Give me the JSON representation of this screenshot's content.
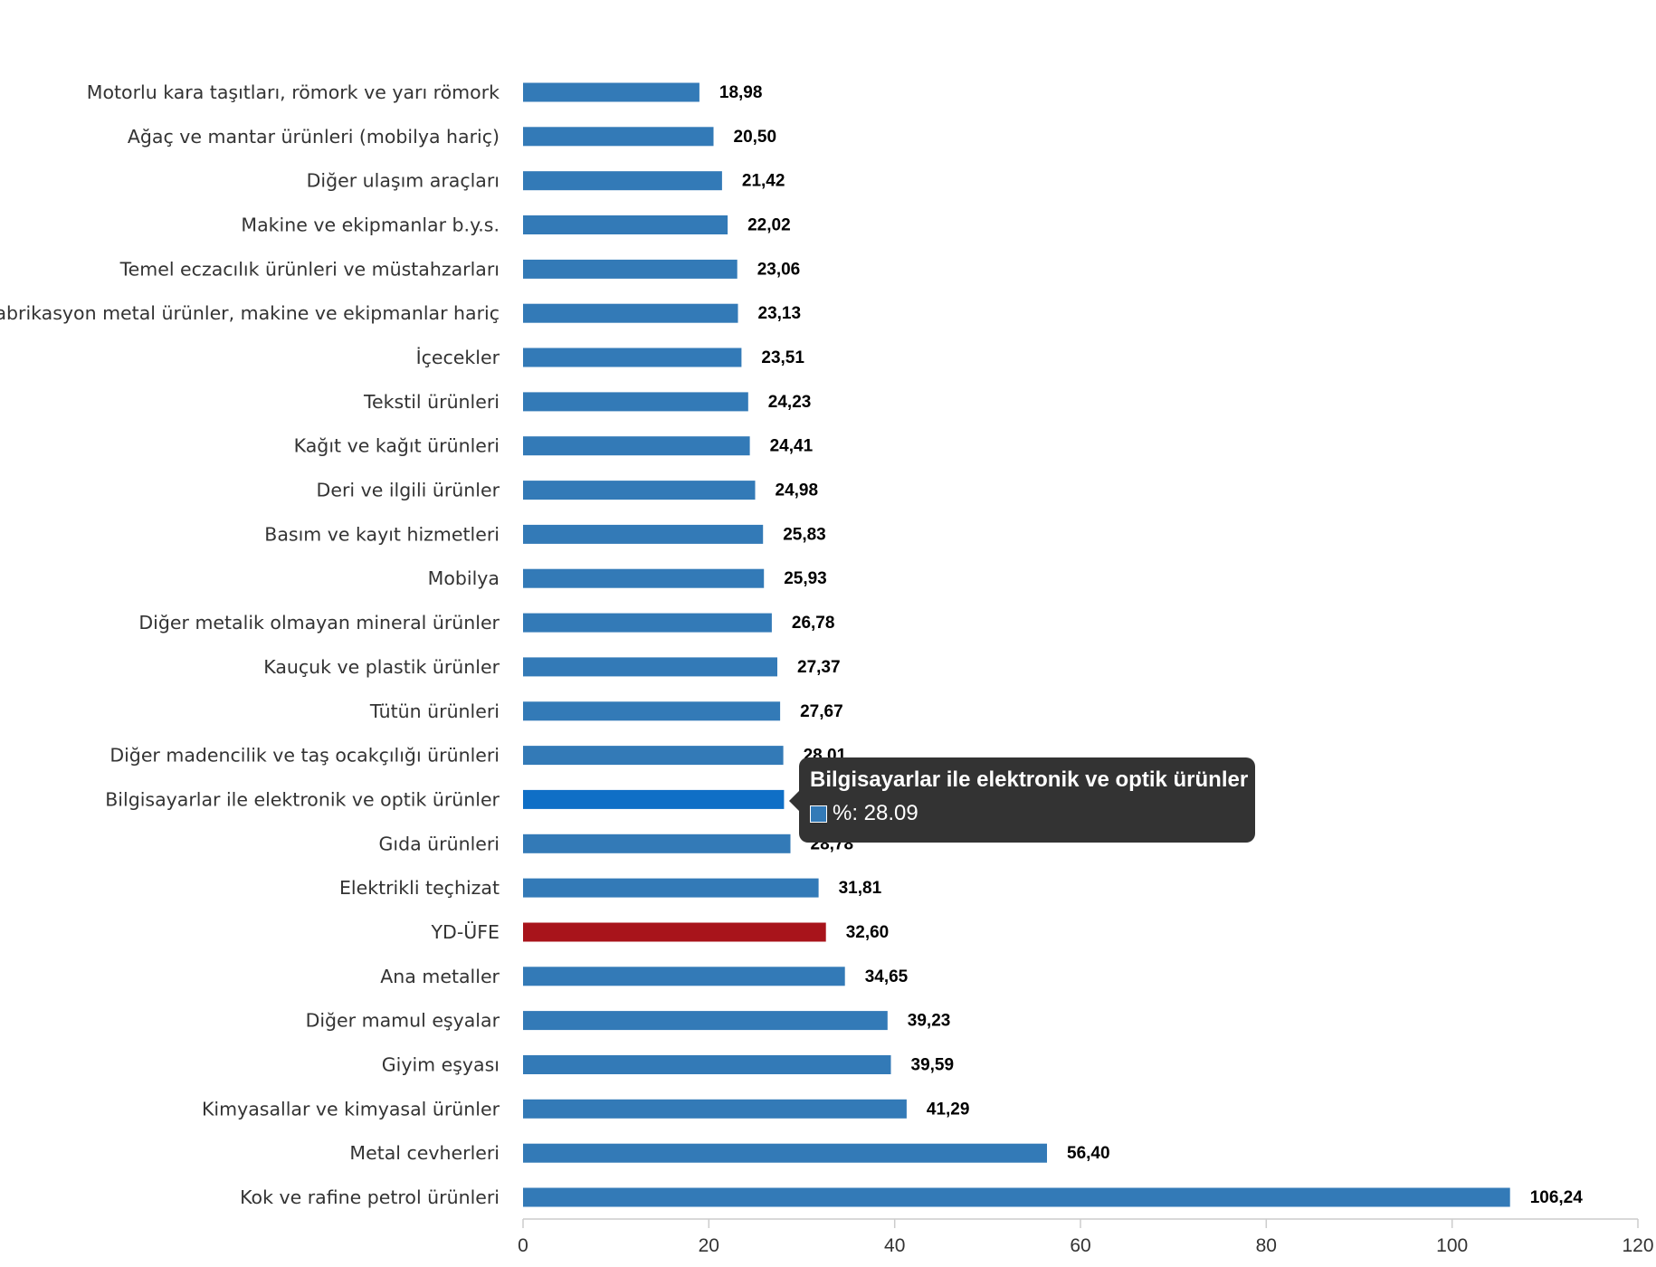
{
  "colors": {
    "bar": "#337ab7",
    "bar_highlight": "#0f6fc6",
    "bar_reference": "#a8141b",
    "axis": "#cccccc",
    "tooltip_bg": "#333333"
  },
  "chart_data": {
    "type": "bar",
    "orientation": "horizontal",
    "title": "",
    "xlabel": "",
    "ylabel": "",
    "xlim": [
      0,
      120
    ],
    "x_ticks": [
      "0",
      "20",
      "40",
      "60",
      "80",
      "100",
      "120"
    ],
    "grid": false,
    "legend": "none",
    "categories": [
      "Motorlu kara taşıtları, römork ve yarı römork",
      "Ağaç ve mantar ürünleri (mobilya hariç)",
      "Diğer ulaşım araçları",
      "Makine ve ekipmanlar b.y.s.",
      "Temel eczacılık ürünleri ve müstahzarları",
      "Fabrikasyon metal ürünler, makine ve ekipmanlar hariç",
      "İçecekler",
      "Tekstil ürünleri",
      "Kağıt ve kağıt ürünleri",
      "Deri ve ilgili ürünler",
      "Basım ve kayıt hizmetleri",
      "Mobilya",
      "Diğer metalik olmayan mineral ürünler",
      "Kauçuk ve plastik ürünler",
      "Tütün ürünleri",
      "Diğer madencilik ve taş ocakçılığı ürünleri",
      "Bilgisayarlar ile elektronik ve optik ürünler",
      "Gıda ürünleri",
      "Elektrikli teçhizat",
      "YD-ÜFE",
      "Ana metaller",
      "Diğer mamul eşyalar",
      "Giyim eşyası",
      "Kimyasallar ve kimyasal ürünler",
      "Metal cevherleri",
      "Kok ve rafine petrol ürünleri"
    ],
    "values": [
      18.98,
      20.5,
      21.42,
      22.02,
      23.06,
      23.13,
      23.51,
      24.23,
      24.41,
      24.98,
      25.83,
      25.93,
      26.78,
      27.37,
      27.67,
      28.01,
      28.09,
      28.78,
      31.81,
      32.6,
      34.65,
      39.23,
      39.59,
      41.29,
      56.4,
      106.24
    ],
    "value_labels": [
      "18,98",
      "20,50",
      "21,42",
      "22,02",
      "23,06",
      "23,13",
      "23,51",
      "24,23",
      "24,41",
      "24,98",
      "25,83",
      "25,93",
      "26,78",
      "27,37",
      "27,67",
      "28,01",
      "28,09",
      "28,78",
      "31,81",
      "32,60",
      "34,65",
      "39,23",
      "39,59",
      "41,29",
      "56,40",
      "106,24"
    ],
    "highlighted_category": "YD-ÜFE",
    "hovered_category": "Bilgisayarlar ile elektronik ve optik ürünler"
  },
  "tooltip": {
    "title": "Bilgisayarlar ile elektronik ve optik ürünler",
    "text": "%: 28.09"
  }
}
